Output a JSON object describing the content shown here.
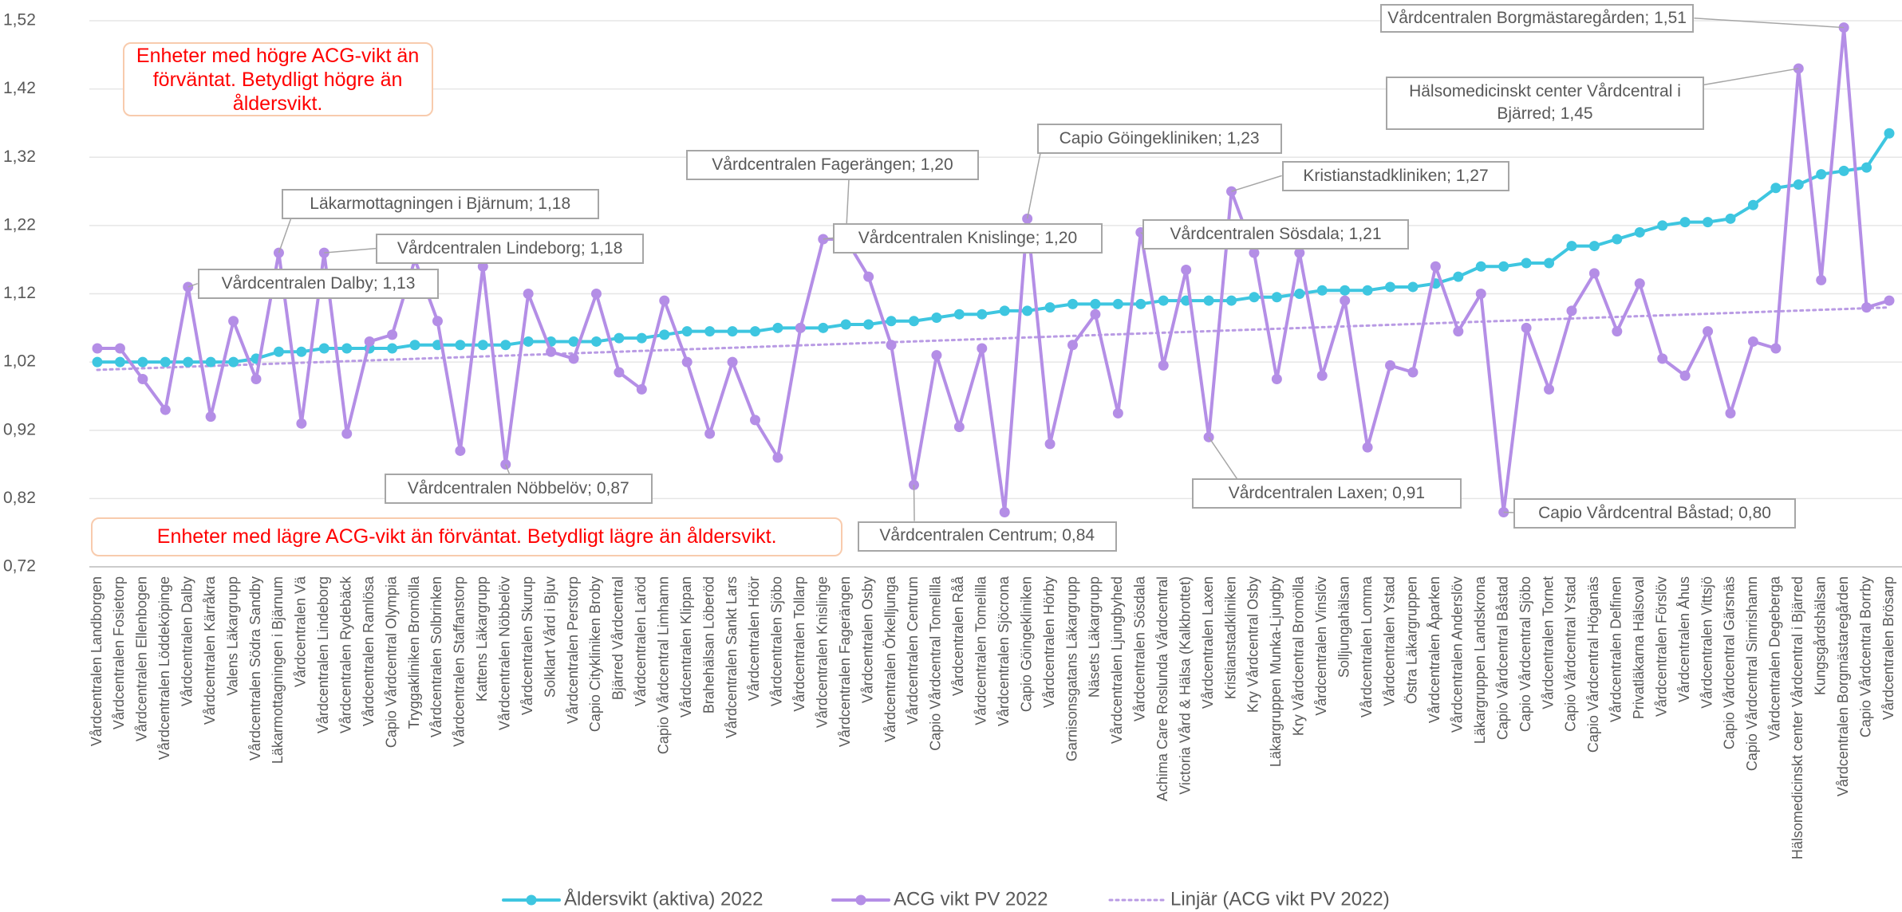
{
  "chart_data": {
    "type": "line",
    "categories": [
      "Vårdcentralen Landborgen",
      "Vårdcentralen Fosietorp",
      "Vårdcentralen Ellenbogen",
      "Vårdcentralen Löddeköpinge",
      "Vårdcentralen Dalby",
      "Vårdcentralen Kärråkra",
      "Valens Läkargrupp",
      "Vårdcentralen Södra Sandby",
      "Läkarmottagningen i Bjärnum",
      "Vårdcentralen Vä",
      "Vårdcentralen Lindeborg",
      "Vårdcentralen Rydebäck",
      "Vårdcentralen Ramlösa",
      "Capio Vårdcentral Olympia",
      "Tryggakliniken Bromölla",
      "Vårdcentralen Solbrinken",
      "Vårdcentralen Staffanstorp",
      "Kattens Läkargrupp",
      "Vårdcentralen Nöbbelöv",
      "Vårdcentralen Skurup",
      "Solklart Vård i Bjuv",
      "Vårdcentralen Perstorp",
      "Capio Citykliniken Broby",
      "Bjärred Vårdcentral",
      "Vårdcentralen Laröd",
      "Capio Vårdcentral Limhamn",
      "Vårdcentralen Klippan",
      "Brahehälsan Löberöd",
      "Vårdcentralen Sankt Lars",
      "Vårdcentralen Höör",
      "Vårdcentralen Sjöbo",
      "Vårdcentralen Tollarp",
      "Vårdcentralen Knislinge",
      "Vårdcentralen Fagerängen",
      "Vårdcentralen Osby",
      "Vårdcentralen Örkelljunga",
      "Vårdcentralen Centrum",
      "Capio Vårdcentral Tomelilla",
      "Vårdcentralen Råå",
      "Vårdcentralen Tomelilla",
      "Vårdcentralen Sjöcrona",
      "Capio Göingekliniken",
      "Vårdcentralen Hörby",
      "Garnisonsgatans Läkargrupp",
      "Näsets Läkargrupp",
      "Vårdcentralen Ljungbyhed",
      "Vårdcentralen Sösdala",
      "Achima Care Roslunda Vårdcentral",
      "Victoria Vård & Hälsa (Kalkbrottet)",
      "Vårdcentralen Laxen",
      "Kristianstadkliniken",
      "Kry Vårdcentral Osby",
      "Läkargruppen Munka-Ljungby",
      "Kry Vårdcentral Bromölla",
      "Vårdcentralen Vinslöv",
      "Solljungahälsan",
      "Vårdcentralen Lomma",
      "Vårdcentralen Ystad",
      "Östra Läkargruppen",
      "Vårdcentralen Åparken",
      "Vårdcentralen Anderslöv",
      "Läkargruppen Landskrona",
      "Capio Vårdcentral Båstad",
      "Capio Vårdcentral Sjöbo",
      "Vårdcentralen Tornet",
      "Capio Vårdcentral Ystad",
      "Capio Vårdcentral Höganäs",
      "Vårdcentralen Delfinen",
      "Privatläkarna Hälsoval",
      "Vårdcentralen Förslöv",
      "Vårdcentralen Åhus",
      "Vårdcentralen Vittsjö",
      "Capio Vårdcentral Gärsnäs",
      "Capio Vårdcentral Simrishamn",
      "Vårdcentralen Degeberga",
      "Hälsomedicinskt center Vårdcentral i Bjärred",
      "Kungsgårdshälsan",
      "Vårdcentralen Borgmästaregården",
      "Capio Vårdcentral Borrby",
      "Vårdcentralen Brösarp"
    ],
    "series": [
      {
        "name": "Åldersvikt (aktiva) 2022",
        "color": "#3ec6e0",
        "values": [
          1.02,
          1.02,
          1.02,
          1.02,
          1.02,
          1.02,
          1.02,
          1.025,
          1.035,
          1.035,
          1.04,
          1.04,
          1.04,
          1.04,
          1.045,
          1.045,
          1.045,
          1.045,
          1.045,
          1.05,
          1.05,
          1.05,
          1.05,
          1.055,
          1.055,
          1.06,
          1.065,
          1.065,
          1.065,
          1.065,
          1.07,
          1.07,
          1.07,
          1.075,
          1.075,
          1.08,
          1.08,
          1.085,
          1.09,
          1.09,
          1.095,
          1.095,
          1.1,
          1.105,
          1.105,
          1.105,
          1.105,
          1.11,
          1.11,
          1.11,
          1.11,
          1.115,
          1.115,
          1.12,
          1.125,
          1.125,
          1.125,
          1.13,
          1.13,
          1.135,
          1.145,
          1.16,
          1.16,
          1.165,
          1.165,
          1.19,
          1.19,
          1.2,
          1.21,
          1.22,
          1.225,
          1.225,
          1.23,
          1.25,
          1.275,
          1.28,
          1.295,
          1.3,
          1.305,
          1.355
        ]
      },
      {
        "name": "ACG vikt PV 2022",
        "color": "#b48ee6",
        "values": [
          1.04,
          1.04,
          0.995,
          0.95,
          1.13,
          0.94,
          1.08,
          0.995,
          1.18,
          0.93,
          1.18,
          0.915,
          1.05,
          1.06,
          1.17,
          1.08,
          0.89,
          1.16,
          0.87,
          1.12,
          1.035,
          1.025,
          1.12,
          1.005,
          0.98,
          1.11,
          1.02,
          0.915,
          1.02,
          0.935,
          0.88,
          1.07,
          1.2,
          1.2,
          1.145,
          1.045,
          0.84,
          1.03,
          0.925,
          1.04,
          0.8,
          1.23,
          0.9,
          1.045,
          1.09,
          0.945,
          1.21,
          1.015,
          1.155,
          0.91,
          1.27,
          1.18,
          0.995,
          1.18,
          1.0,
          1.11,
          0.895,
          1.015,
          1.005,
          1.16,
          1.065,
          1.12,
          0.8,
          1.07,
          0.98,
          1.095,
          1.15,
          1.065,
          1.135,
          1.025,
          1.0,
          1.065,
          0.945,
          1.05,
          1.04,
          1.45,
          1.14,
          1.51,
          1.1,
          1.11
        ]
      },
      {
        "name": "Linjär (ACG vikt PV 2022)",
        "color": "#b99be4",
        "style": "dotted",
        "trend_of": "ACG vikt PV 2022"
      }
    ],
    "ylim": [
      0.72,
      1.52
    ],
    "yticks": [
      {
        "value": 0.72,
        "label": "0,72"
      },
      {
        "value": 0.82,
        "label": "0,82"
      },
      {
        "value": 0.92,
        "label": "0,92"
      },
      {
        "value": 1.02,
        "label": "1,02"
      },
      {
        "value": 1.12,
        "label": "1,12"
      },
      {
        "value": 1.22,
        "label": "1,22"
      },
      {
        "value": 1.32,
        "label": "1,32"
      },
      {
        "value": 1.42,
        "label": "1,42"
      },
      {
        "value": 1.52,
        "label": "1,52"
      }
    ],
    "grid": true,
    "legend": "bottom",
    "notes": [
      "Enheter med högre ACG-vikt än förväntat. Betydligt högre än åldersvikt.",
      "Enheter med lägre ACG-vikt än förväntat. Betydligt lägre än åldersvikt."
    ],
    "annotations": [
      {
        "text": "Vårdcentralen Borgmästaregården; 1,51",
        "category": "Vårdcentralen Borgmästaregården"
      },
      {
        "text": "Hälsomedicinskt center Vårdcentral i Bjärred; 1,45",
        "category": "Hälsomedicinskt center Vårdcentral i Bjärred"
      },
      {
        "text": "Kristianstadkliniken; 1,27",
        "category": "Kristianstadkliniken"
      },
      {
        "text": "Capio Göingekliniken; 1,23",
        "category": "Capio Göingekliniken"
      },
      {
        "text": "Vårdcentralen Fagerängen; 1,20",
        "category": "Vårdcentralen Fagerängen"
      },
      {
        "text": "Vårdcentralen Knislinge; 1,20",
        "category": "Vårdcentralen Knislinge"
      },
      {
        "text": "Vårdcentralen Sösdala; 1,21",
        "category": "Vårdcentralen Sösdala"
      },
      {
        "text": "Läkarmottagningen i Bjärnum; 1,18",
        "category": "Läkarmottagningen i Bjärnum"
      },
      {
        "text": "Vårdcentralen Lindeborg; 1,18",
        "category": "Vårdcentralen Lindeborg"
      },
      {
        "text": "Vårdcentralen Dalby; 1,13",
        "category": "Vårdcentralen Dalby"
      },
      {
        "text": "Vårdcentralen Nöbbelöv; 0,87",
        "category": "Vårdcentralen Nöbbelöv"
      },
      {
        "text": "Vårdcentralen Centrum; 0,84",
        "category": "Vårdcentralen Centrum"
      },
      {
        "text": "Vårdcentralen Laxen; 0,91",
        "category": "Vårdcentralen Laxen"
      },
      {
        "text": "Capio Vårdcentral Båstad; 0,80",
        "category": "Capio Vårdcentral Båstad"
      }
    ]
  }
}
